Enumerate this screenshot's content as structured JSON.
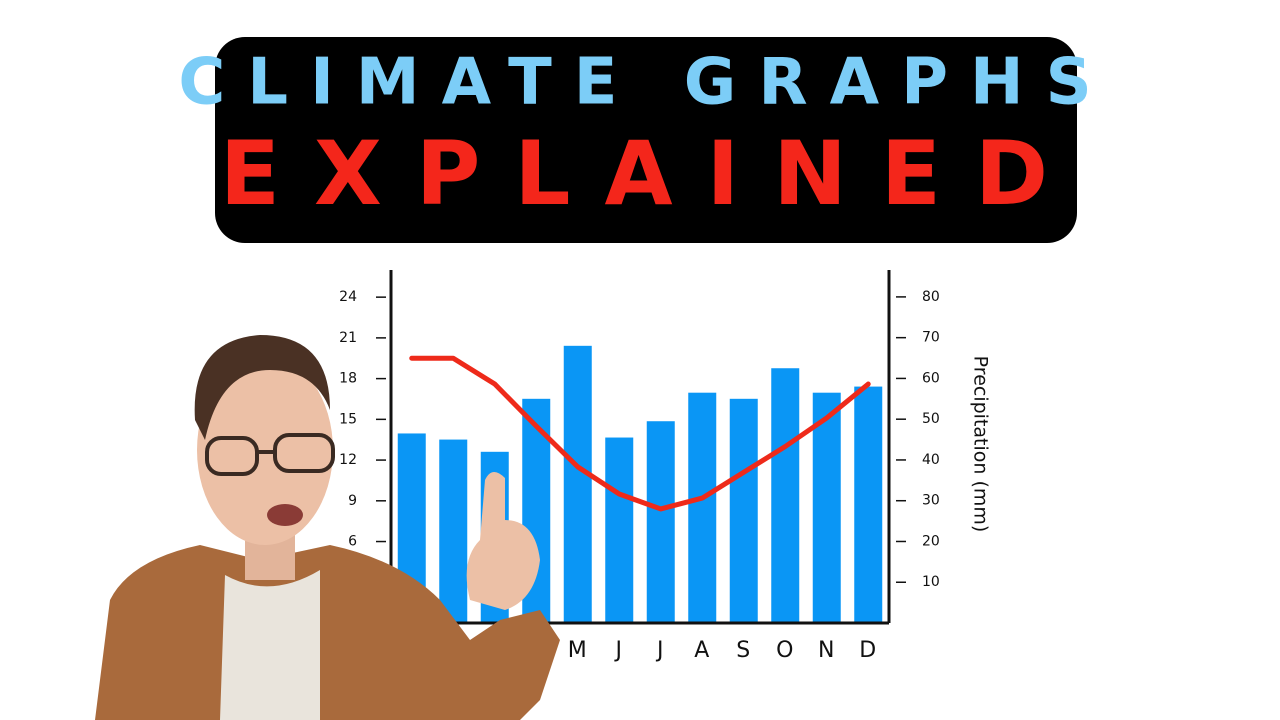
{
  "chart_data": {
    "type": "combo",
    "title": "CLIMATE GRAPHS",
    "subtitle": "EXPLAINED",
    "title_color": "#7ccdf7",
    "subtitle_color": "#f4261b",
    "y2_label": "Precipitation (mm)",
    "categories": [
      null,
      null,
      null,
      null,
      "M",
      "J",
      "J",
      "A",
      "S",
      "O",
      "N",
      "D"
    ],
    "ylim": [
      0,
      26
    ],
    "yticks": [
      6,
      9,
      12,
      15,
      18,
      21,
      24
    ],
    "y2lim": [
      0,
      86.6
    ],
    "y2ticks": [
      10,
      20,
      30,
      40,
      50,
      60,
      70,
      80
    ],
    "series": [
      {
        "type": "bar",
        "axis": "y2",
        "color": "#0a96f5",
        "values": [
          46.5,
          45,
          42,
          55,
          68,
          45.5,
          49.5,
          56.5,
          55,
          62.5,
          56.5,
          58
        ]
      },
      {
        "type": "line",
        "axis": "y",
        "color": "#ee2a1a",
        "values": [
          19.5,
          19.5,
          17.6,
          14.5,
          11.5,
          9.5,
          8.4,
          9.2,
          11.1,
          13,
          15.1,
          17.6
        ]
      }
    ]
  }
}
